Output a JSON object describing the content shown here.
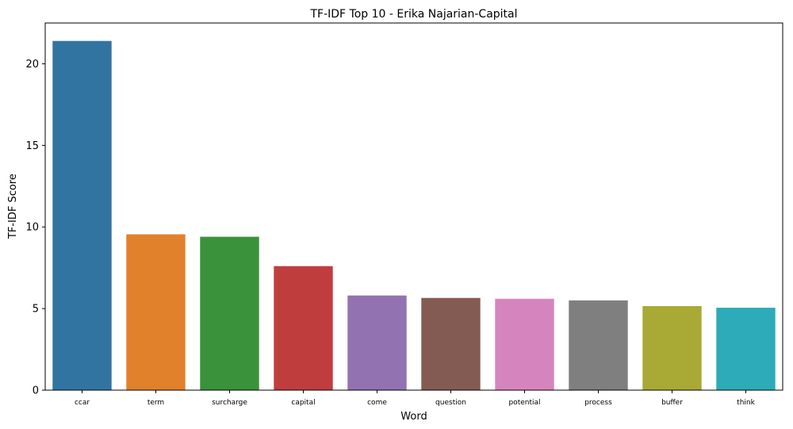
{
  "chart_data": {
    "type": "bar",
    "title": "TF-IDF Top 10 - Erika Najarian-Capital",
    "xlabel": "Word",
    "ylabel": "TF-IDF Score",
    "categories": [
      "ccar",
      "term",
      "surcharge",
      "capital",
      "come",
      "question",
      "potential",
      "process",
      "buffer",
      "think"
    ],
    "values": [
      21.4,
      9.55,
      9.4,
      7.6,
      5.8,
      5.65,
      5.6,
      5.5,
      5.15,
      5.05
    ],
    "colors": [
      "#3274a1",
      "#e1812c",
      "#3a923a",
      "#c03d3e",
      "#9372b2",
      "#845b53",
      "#d684bd",
      "#7f7f7f",
      "#a9aa35",
      "#2eabb8"
    ],
    "ylim": [
      0,
      22.5
    ],
    "yticks": [
      0,
      5,
      10,
      15,
      20
    ],
    "grid": false,
    "legend": "none"
  }
}
